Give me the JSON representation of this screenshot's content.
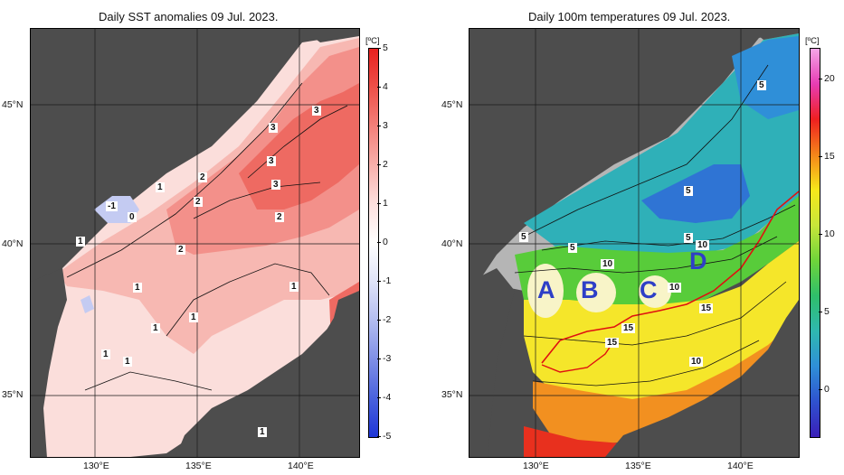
{
  "left_panel": {
    "title": "Daily SST anomalies 09 Jul. 2023.",
    "colorbar": {
      "unit": "[ºC]",
      "ticks": [
        "5",
        "4",
        "3",
        "2",
        "1",
        "0",
        "-1",
        "-2",
        "-3",
        "-4",
        "-5"
      ],
      "colors": [
        "#e8201e",
        "#ee5149",
        "#f3807a",
        "#f8b0ab",
        "#fde0de",
        "#ffffff",
        "#dfe3f7",
        "#b3bdf0",
        "#7f8fe6",
        "#4a62dd",
        "#1e35d6"
      ]
    },
    "contour_labels": [
      "3",
      "3",
      "3",
      "3",
      "2",
      "2",
      "2",
      "2",
      "1",
      "1",
      "1",
      "1",
      "1",
      "1",
      "1",
      "1",
      "-1",
      "0",
      "1"
    ]
  },
  "right_panel": {
    "title": "Daily 100m temperatures 09 Jul. 2023.",
    "colorbar": {
      "unit": "[ºC]",
      "ticks": [
        "20",
        "15",
        "10",
        "5",
        "0"
      ],
      "colors": [
        "#f4a6e8",
        "#e83cb4",
        "#ee2020",
        "#f5851a",
        "#f7e81a",
        "#c8e63a",
        "#6fd43a",
        "#2fbf6a",
        "#2fb8b0",
        "#2f8fd8",
        "#2f52cf",
        "#3a1fb8"
      ]
    },
    "contour_labels": [
      "5",
      "5",
      "5",
      "5",
      "5",
      "10",
      "10",
      "10",
      "10",
      "15",
      "15",
      "15"
    ],
    "regions": [
      "A",
      "B",
      "C",
      "D"
    ]
  },
  "axes": {
    "lat_labels": [
      "45°N",
      "40°N",
      "35°N"
    ],
    "lon_labels": [
      "130°E",
      "135°E",
      "140°E"
    ]
  },
  "colors": {
    "land": "#4d4d4d",
    "grid": "#1a1a1a",
    "region_label": "#2e3fc7",
    "front_line": "#e01010"
  }
}
